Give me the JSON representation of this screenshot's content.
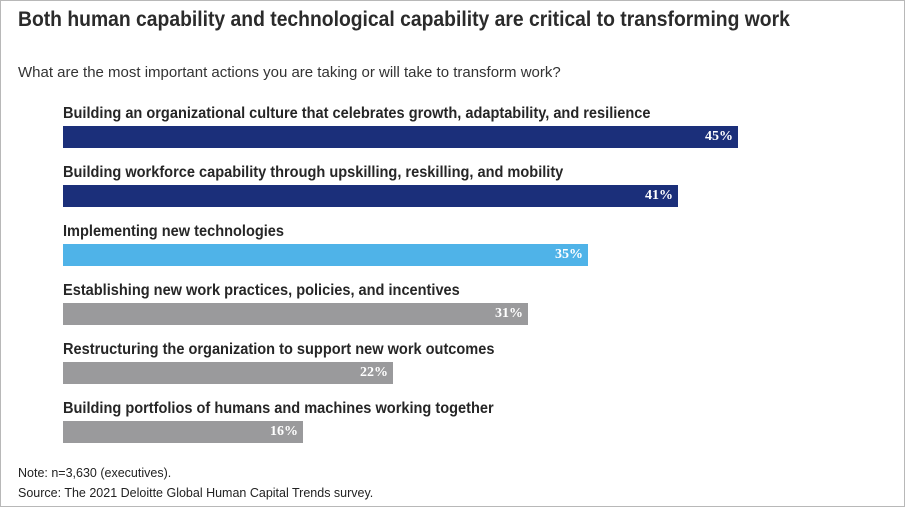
{
  "chart_data": {
    "type": "bar",
    "orientation": "horizontal",
    "title": "Both human capability and technological capability are critical to transforming work",
    "subtitle": "What are the most important actions you are taking or will take to transform work?",
    "categories": [
      "Building an organizational culture that celebrates growth, adaptability, and resilience",
      "Building workforce capability through upskilling, reskilling, and mobility",
      "Implementing new technologies",
      "Establishing new work practices, policies, and incentives",
      "Restructuring the organization to support new work outcomes",
      "Building portfolios of humans and machines working together"
    ],
    "values": [
      45,
      41,
      35,
      31,
      22,
      16
    ],
    "value_labels": [
      "45%",
      "41%",
      "35%",
      "31%",
      "22%",
      "16%"
    ],
    "colors": [
      "#1b2f7a",
      "#1b2f7a",
      "#4fb3e8",
      "#9a9a9c",
      "#9a9a9c",
      "#9a9a9c"
    ],
    "xlim": [
      0,
      100
    ],
    "xlabel": "",
    "ylabel": "",
    "grid": false
  },
  "footer": {
    "note": "Note: n=3,630 (executives).",
    "source": "Source: The 2021 Deloitte Global Human Capital Trends survey."
  }
}
